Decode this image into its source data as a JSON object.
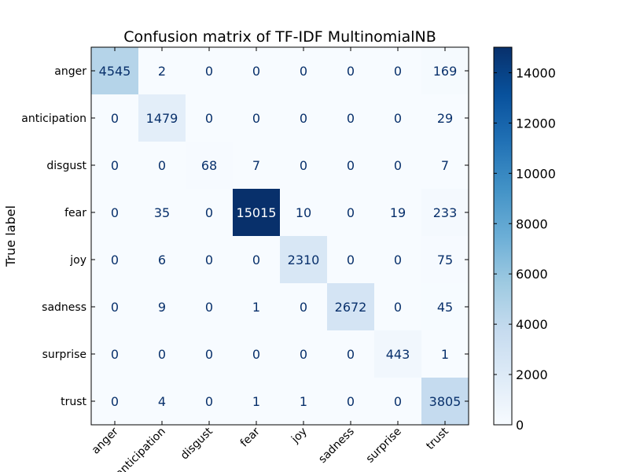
{
  "chart_data": {
    "type": "heatmap",
    "title": "Confusion matrix of TF-IDF MultinomialNB",
    "ylabel": "True label",
    "xlabel": "",
    "rows": [
      "anger",
      "anticipation",
      "disgust",
      "fear",
      "joy",
      "sadness",
      "surprise",
      "trust"
    ],
    "columns": [
      "anger",
      "anticipation",
      "disgust",
      "fear",
      "joy",
      "sadness",
      "surprise",
      "trust"
    ],
    "values": [
      [
        4545,
        2,
        0,
        0,
        0,
        0,
        0,
        169
      ],
      [
        0,
        1479,
        0,
        0,
        0,
        0,
        0,
        29
      ],
      [
        0,
        0,
        68,
        7,
        0,
        0,
        0,
        7
      ],
      [
        0,
        35,
        0,
        15015,
        10,
        0,
        19,
        233
      ],
      [
        0,
        6,
        0,
        0,
        2310,
        0,
        0,
        75
      ],
      [
        0,
        9,
        0,
        1,
        0,
        2672,
        0,
        45
      ],
      [
        0,
        0,
        0,
        0,
        0,
        0,
        443,
        1
      ],
      [
        0,
        4,
        0,
        1,
        1,
        0,
        0,
        3805
      ]
    ],
    "colorbar": {
      "range": [
        0,
        15015
      ],
      "ticks": [
        0,
        2000,
        4000,
        6000,
        8000,
        10000,
        12000,
        14000
      ],
      "colormap": "Blues",
      "low_color": "#f7fbff",
      "high_color": "#08306b"
    }
  }
}
